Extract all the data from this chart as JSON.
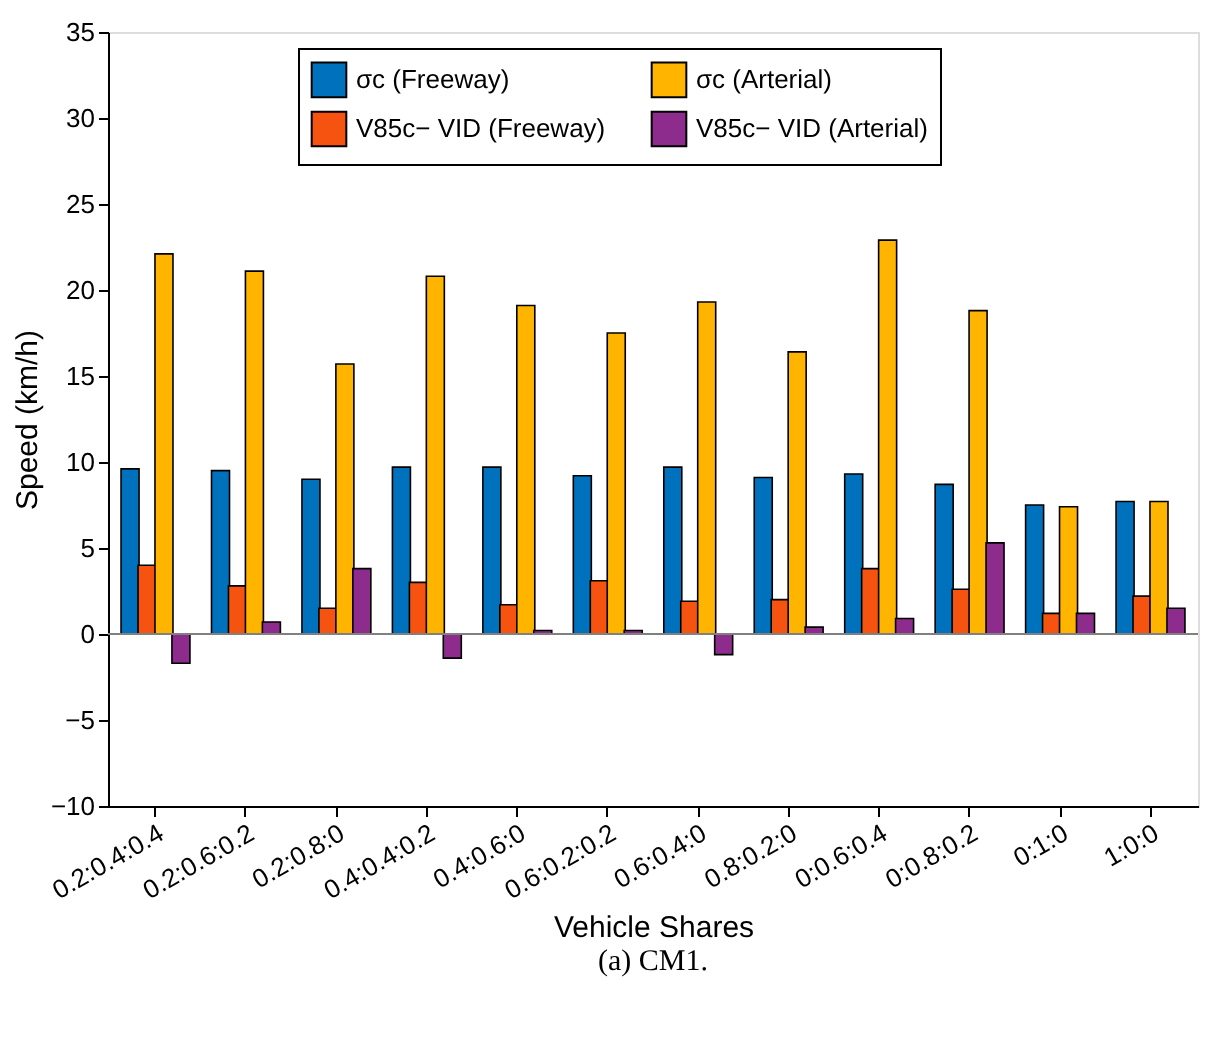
{
  "chart_data": {
    "type": "bar",
    "xlabel": "Vehicle Shares",
    "ylabel": "Speed (km/h)",
    "categories": [
      "0.2:0.4:0.4",
      "0.2:0.6:0.2",
      "0.2:0.8:0",
      "0.4:0.4:0.2",
      "0.4:0.6:0",
      "0.6:0.2:0.2",
      "0.6:0.4:0",
      "0.8:0.2:0",
      "0:0.6:0.4",
      "0:0.8:0.2",
      "0:1:0",
      "1:0:0"
    ],
    "series": [
      {
        "name": "σc (Freeway)",
        "color": "#0072bd",
        "values": [
          9.6,
          9.5,
          9.0,
          9.7,
          9.7,
          9.2,
          9.7,
          9.1,
          9.3,
          8.7,
          7.5,
          7.7
        ]
      },
      {
        "name": "V85c− VID (Freeway)",
        "color": "#f5530f",
        "values": [
          4.0,
          2.8,
          1.5,
          3.0,
          1.7,
          3.1,
          1.9,
          2.0,
          3.8,
          2.6,
          1.2,
          2.2
        ]
      },
      {
        "name": "σc (Arterial)",
        "color": "#ffb400",
        "values": [
          22.1,
          21.1,
          15.7,
          20.8,
          19.1,
          17.5,
          19.3,
          16.4,
          22.9,
          18.8,
          7.4,
          7.7
        ]
      },
      {
        "name": "V85c− VID (Arterial)",
        "color": "#8e2c8e",
        "values": [
          -1.7,
          0.7,
          3.8,
          -1.4,
          0.2,
          0.2,
          -1.2,
          0.4,
          0.9,
          5.3,
          1.2,
          1.5
        ]
      }
    ],
    "ylim": [
      -10,
      35
    ],
    "yticks": [
      -10,
      -5,
      0,
      5,
      10,
      15,
      20,
      25,
      30,
      35
    ],
    "ref_lines": [
      {
        "axis": "y",
        "value": 0,
        "color": "#808080"
      }
    ],
    "legend": "top",
    "grid": false,
    "annotations": [
      "(a) CM1."
    ]
  }
}
